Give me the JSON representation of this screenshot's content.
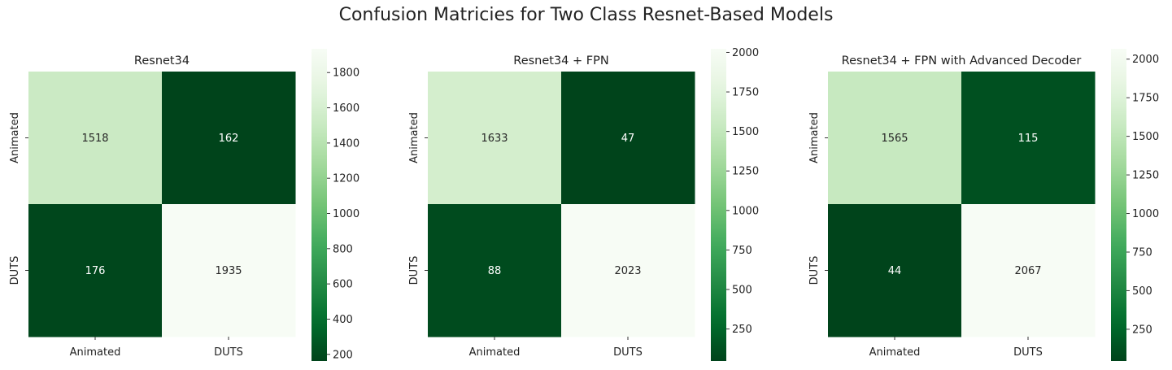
{
  "suptitle": "Confusion Matricies for Two Class Resnet-Based Models",
  "chart_data": [
    {
      "type": "heatmap",
      "title": "Resnet34",
      "row_labels": [
        "Animated",
        "DUTS"
      ],
      "col_labels": [
        "Animated",
        "DUTS"
      ],
      "values": [
        [
          1518,
          162
        ],
        [
          176,
          1935
        ]
      ],
      "colormap": "Greens_r",
      "colorbar": {
        "min": 162,
        "max": 1935,
        "ticks": [
          200,
          400,
          600,
          800,
          1000,
          1200,
          1400,
          1600,
          1800
        ]
      }
    },
    {
      "type": "heatmap",
      "title": "Resnet34 + FPN",
      "row_labels": [
        "Animated",
        "DUTS"
      ],
      "col_labels": [
        "Animated",
        "DUTS"
      ],
      "values": [
        [
          1633,
          47
        ],
        [
          88,
          2023
        ]
      ],
      "colormap": "Greens_r",
      "colorbar": {
        "min": 47,
        "max": 2023,
        "ticks": [
          250,
          500,
          750,
          1000,
          1250,
          1500,
          1750,
          2000
        ]
      }
    },
    {
      "type": "heatmap",
      "title": "Resnet34 + FPN with Advanced Decoder",
      "row_labels": [
        "Animated",
        "DUTS"
      ],
      "col_labels": [
        "Animated",
        "DUTS"
      ],
      "values": [
        [
          1565,
          115
        ],
        [
          44,
          2067
        ]
      ],
      "colormap": "Greens_r",
      "colorbar": {
        "min": 44,
        "max": 2067,
        "ticks": [
          250,
          500,
          750,
          1000,
          1250,
          1500,
          1750,
          2000
        ]
      }
    }
  ]
}
